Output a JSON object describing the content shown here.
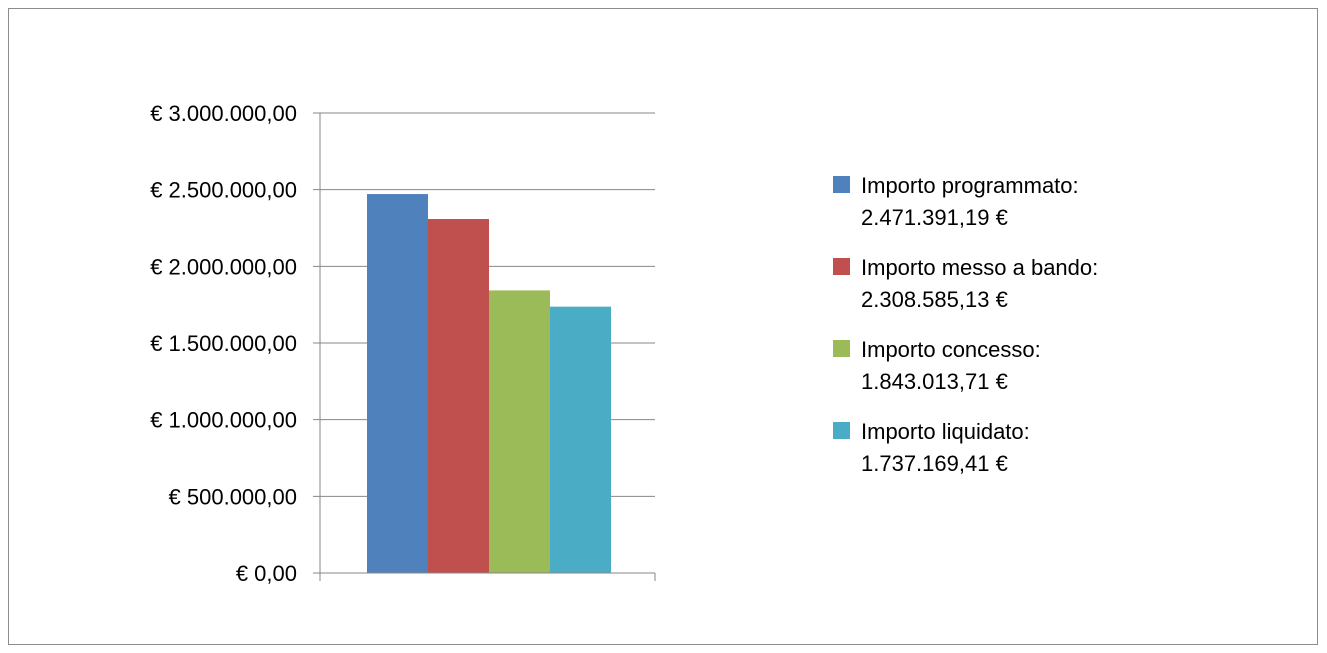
{
  "chart_data": {
    "type": "bar",
    "title": "",
    "xlabel": "",
    "ylabel": "",
    "categories": [
      ""
    ],
    "ylim": [
      0,
      3000000
    ],
    "y_ticks": [
      "€ 0,00",
      "€ 500.000,00",
      "€ 1.000.000,00",
      "€ 1.500.000,00",
      "€ 2.000.000,00",
      "€ 2.500.000,00",
      "€ 3.000.000,00"
    ],
    "y_tick_values": [
      0,
      500000,
      1000000,
      1500000,
      2000000,
      2500000,
      3000000
    ],
    "grid": true,
    "legend_position": "right",
    "series": [
      {
        "name": "Importo programmato:",
        "value_label": "2.471.391,19 €",
        "values": [
          2471391.19
        ],
        "color": "#4F81BD"
      },
      {
        "name": "Importo messo a bando:",
        "value_label": "2.308.585,13 €",
        "values": [
          2308585.13
        ],
        "color": "#C0504D"
      },
      {
        "name": "Importo concesso:",
        "value_label": "1.843.013,71 €",
        "values": [
          1843013.71
        ],
        "color": "#9BBB59"
      },
      {
        "name": "Importo liquidato:",
        "value_label": "1.737.169,41 €",
        "values": [
          1737169.41
        ],
        "color": "#4BACC6"
      }
    ]
  }
}
